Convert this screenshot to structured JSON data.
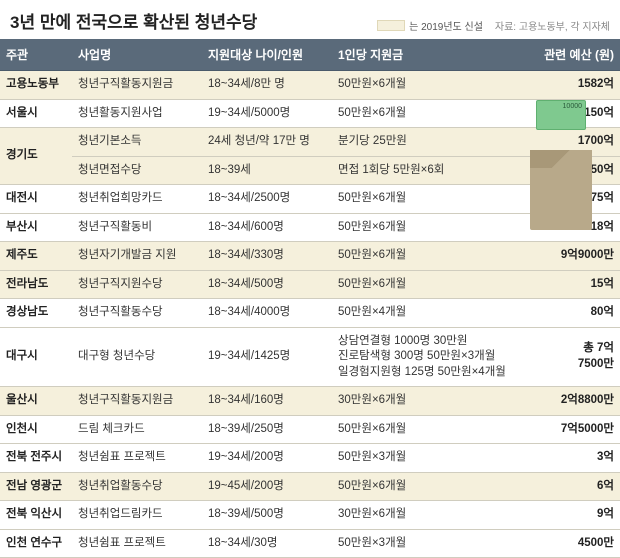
{
  "title": "3년 만에 전국으로 확산된 청년수당",
  "legend": {
    "label": "는 2019년도 신설",
    "swatch_color": "#f5f0dc"
  },
  "source": "자료: 고용노동부, 각 지자체",
  "columns": {
    "c1": "주관",
    "c2": "사업명",
    "c3": "지원대상 나이/인원",
    "c4": "1인당 지원금",
    "c5": "관련 예산 (원)"
  },
  "rows": [
    {
      "new": true,
      "org": "고용노동부",
      "name": "청년구직활동지원금",
      "target": "18~34세/8만 명",
      "amount": "50만원×6개월",
      "budget": "1582억"
    },
    {
      "new": false,
      "org": "서울시",
      "name": "청년활동지원사업",
      "target": "19~34세/5000명",
      "amount": "50만원×6개월",
      "budget": "150억"
    },
    {
      "new": true,
      "org": "경기도",
      "name": "청년기본소득",
      "target": "24세 청년/약 17만 명",
      "amount": "분기당 25만원",
      "budget": "1700억",
      "rowspan_org": 2
    },
    {
      "new": true,
      "org": "",
      "name": "청년면접수당",
      "target": "18~39세",
      "amount": "면접 1회당 5만원×6회",
      "budget": "150억"
    },
    {
      "new": false,
      "org": "대전시",
      "name": "청년취업희망카드",
      "target": "18~34세/2500명",
      "amount": "50만원×6개월",
      "budget": "75억"
    },
    {
      "new": false,
      "org": "부산시",
      "name": "청년구직활동비",
      "target": "18~34세/600명",
      "amount": "50만원×6개월",
      "budget": "18억"
    },
    {
      "new": true,
      "org": "제주도",
      "name": "청년자기개발금 지원",
      "target": "18~34세/330명",
      "amount": "50만원×6개월",
      "budget": "9억9000만"
    },
    {
      "new": true,
      "org": "전라남도",
      "name": "청년구직지원수당",
      "target": "18~34세/500명",
      "amount": "50만원×6개월",
      "budget": "15억"
    },
    {
      "new": false,
      "org": "경상남도",
      "name": "청년구직활동수당",
      "target": "18~34세/4000명",
      "amount": "50만원×4개월",
      "budget": "80억"
    },
    {
      "new": false,
      "org": "대구시",
      "name": "대구형 청년수당",
      "target": "19~34세/1425명",
      "amount": "상담연결형 1000명 30만원\n진로탐색형 300명 50만원×3개월\n일경험지원형 125명 50만원×4개월",
      "budget": "총 7억\n7500만"
    },
    {
      "new": true,
      "org": "울산시",
      "name": "청년구직활동지원금",
      "target": "18~34세/160명",
      "amount": "30만원×6개월",
      "budget": "2억8800만"
    },
    {
      "new": false,
      "org": "인천시",
      "name": "드림 체크카드",
      "target": "18~39세/250명",
      "amount": "50만원×6개월",
      "budget": "7억5000만"
    },
    {
      "new": false,
      "org": "전북 전주시",
      "name": "청년쉼표 프로젝트",
      "target": "19~34세/200명",
      "amount": "50만원×3개월",
      "budget": "3억"
    },
    {
      "new": true,
      "org": "전남 영광군",
      "name": "청년취업활동수당",
      "target": "19~45세/200명",
      "amount": "50만원×6개월",
      "budget": "6억"
    },
    {
      "new": false,
      "org": "전북 익산시",
      "name": "청년취업드림카드",
      "target": "18~39세/500명",
      "amount": "30만원×6개월",
      "budget": "9억"
    },
    {
      "new": false,
      "org": "인천 연수구",
      "name": "청년쉼표 프로젝트",
      "target": "18~34세/30명",
      "amount": "50만원×3개월",
      "budget": "4500만"
    }
  ],
  "style": {
    "header_bg": "#5a6a7a",
    "header_fg": "#ffffff",
    "new_row_bg": "#f5f0dc",
    "border_color": "#d0cdbf",
    "title_fontsize": 17,
    "cell_fontsize": 11.5
  }
}
